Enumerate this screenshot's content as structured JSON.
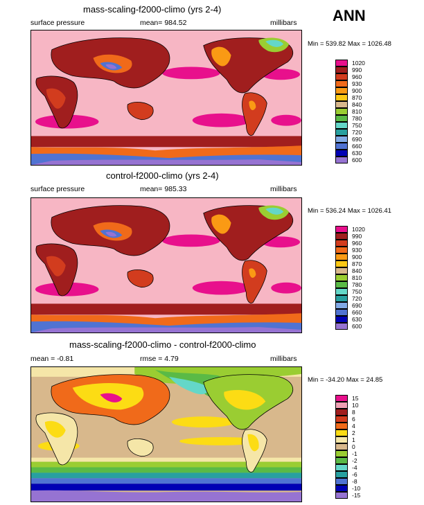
{
  "season": "ANN",
  "panels": [
    {
      "title": "mass-scaling-f2000-climo (yrs 2-4)",
      "left": "surface pressure",
      "center": "mean= 984.52",
      "units": "millibars",
      "minmax": "Min = 539.82 Max = 1026.48",
      "legend_labels": [
        "1020",
        "990",
        "960",
        "930",
        "900",
        "870",
        "840",
        "810",
        "780",
        "750",
        "720",
        "690",
        "660",
        "630",
        "600"
      ],
      "legend_colors": [
        "#e8108c",
        "#a01e1e",
        "#d23c1e",
        "#f06a1a",
        "#fa9a14",
        "#fcc814",
        "#d8b88c",
        "#9acd32",
        "#5aba46",
        "#64d7c8",
        "#28a0a0",
        "#82aae6",
        "#5073d2",
        "#0000b4",
        "#9673d2"
      ],
      "map_style": "pressure"
    },
    {
      "title": "control-f2000-climo (yrs 2-4)",
      "left": "surface pressure",
      "center": "mean= 985.33",
      "units": "millibars",
      "minmax": "Min = 536.24 Max = 1026.41",
      "legend_labels": [
        "1020",
        "990",
        "960",
        "930",
        "900",
        "870",
        "840",
        "810",
        "780",
        "750",
        "720",
        "690",
        "660",
        "630",
        "600"
      ],
      "legend_colors": [
        "#e8108c",
        "#a01e1e",
        "#d23c1e",
        "#f06a1a",
        "#fa9a14",
        "#fcc814",
        "#d8b88c",
        "#9acd32",
        "#5aba46",
        "#64d7c8",
        "#28a0a0",
        "#82aae6",
        "#5073d2",
        "#0000b4",
        "#9673d2"
      ],
      "map_style": "pressure"
    },
    {
      "title": "mass-scaling-f2000-climo - control-f2000-climo",
      "left": "mean =  -0.81",
      "center": "rmse =   4.79",
      "units": "millibars",
      "minmax": "Min = -34.20 Max =  24.85",
      "legend_labels": [
        "15",
        "10",
        "8",
        "6",
        "4",
        "2",
        "1",
        "0",
        "-1",
        "-2",
        "-4",
        "-6",
        "-8",
        "-10",
        "-15"
      ],
      "legend_colors": [
        "#e8108c",
        "#f0a0b4",
        "#a01e1e",
        "#d23c1e",
        "#f06a1a",
        "#fcdc14",
        "#f5e6a8",
        "#d8b88c",
        "#9acd32",
        "#5aba46",
        "#64d7c8",
        "#28a0a0",
        "#5073d2",
        "#0000b4",
        "#9673d2"
      ],
      "map_style": "difference"
    }
  ]
}
